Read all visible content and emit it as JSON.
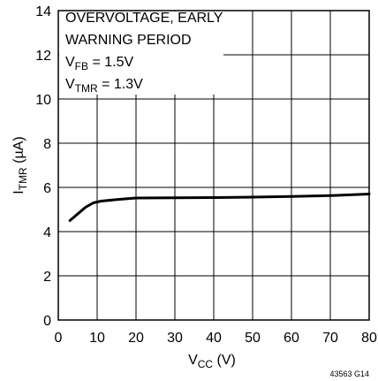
{
  "chart_data": {
    "type": "line",
    "title": "",
    "annotation": {
      "line1": "OVERVOLTAGE, EARLY",
      "line2": "WARNING PERIOD",
      "vfb_main": "V",
      "vfb_sub": "FB",
      "vfb_value": " = 1.5V",
      "vtmr_main": "V",
      "vtmr_sub": "TMR",
      "vtmr_value": " = 1.3V"
    },
    "xlabel": {
      "main": "V",
      "sub": "CC",
      "unit": " (V)"
    },
    "ylabel": {
      "main": "I",
      "sub": "TMR",
      "unit": " (µA)"
    },
    "xlim": [
      0,
      80
    ],
    "ylim": [
      0,
      14
    ],
    "xticks": [
      "0",
      "10",
      "20",
      "30",
      "40",
      "50",
      "60",
      "70",
      "80"
    ],
    "yticks": [
      "0",
      "2",
      "4",
      "6",
      "8",
      "10",
      "12",
      "14"
    ],
    "grid": true,
    "series": [
      {
        "x": [
          3,
          5,
          7,
          9,
          11,
          15,
          20,
          30,
          40,
          50,
          60,
          70,
          80
        ],
        "y": [
          4.5,
          4.8,
          5.1,
          5.3,
          5.38,
          5.45,
          5.52,
          5.53,
          5.54,
          5.56,
          5.59,
          5.63,
          5.7
        ]
      }
    ],
    "figure_code": "43563 G14"
  }
}
